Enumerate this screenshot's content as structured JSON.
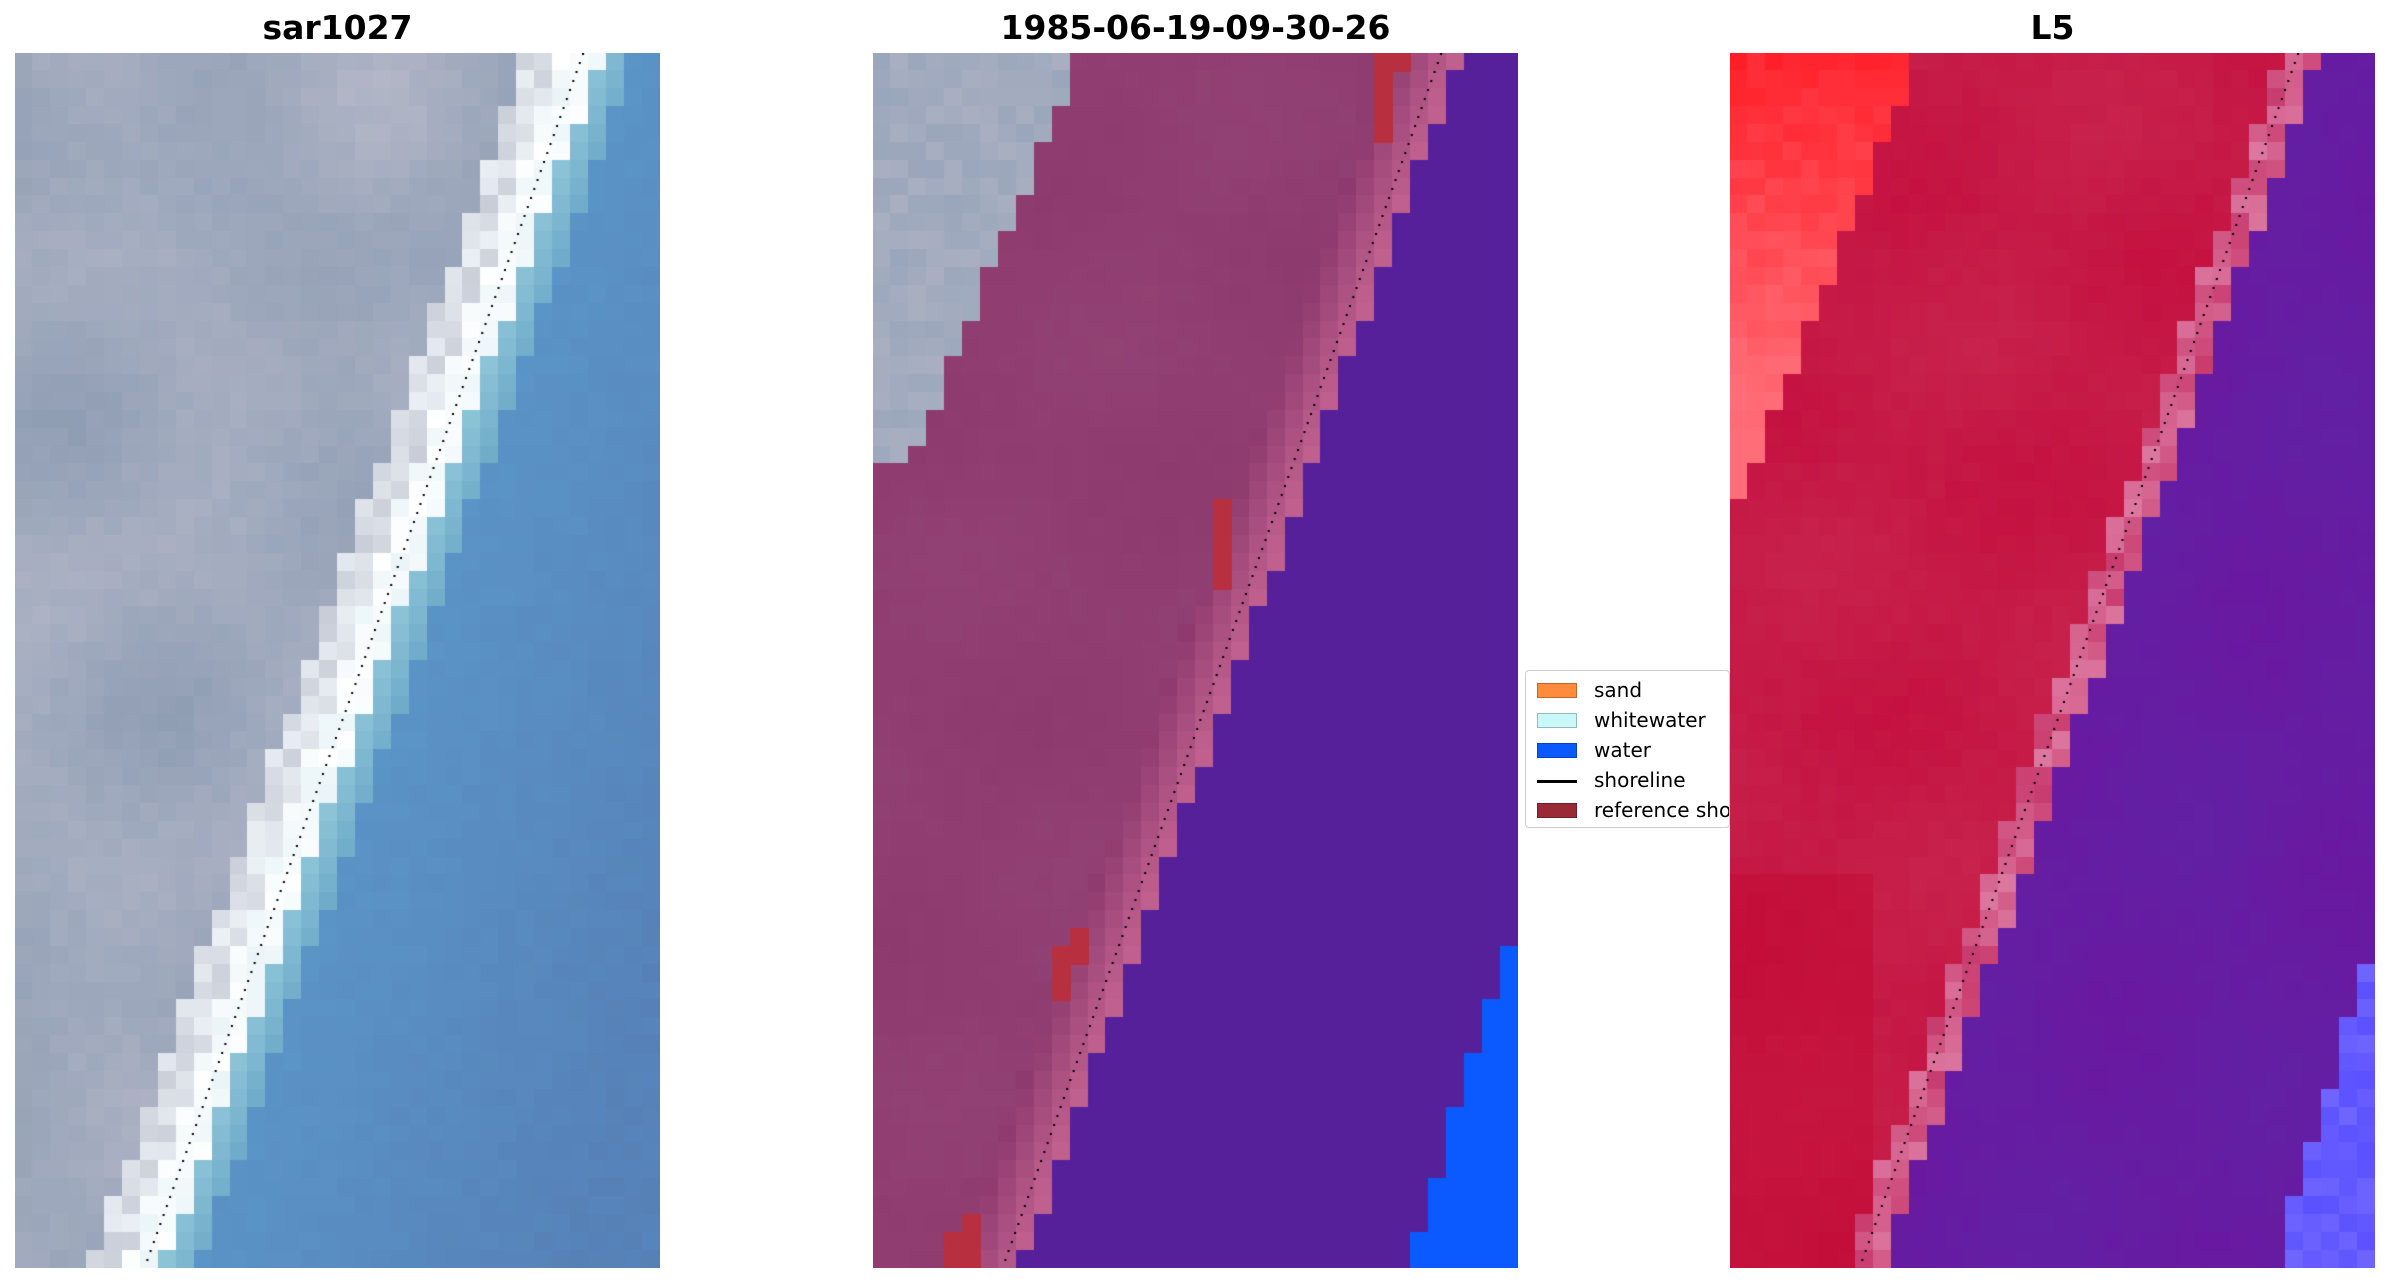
{
  "panels": [
    {
      "title": "sar1027"
    },
    {
      "title": "1985-06-19-09-30-26"
    },
    {
      "title": "L5"
    }
  ],
  "legend": {
    "items": [
      {
        "label": "sand",
        "color": "#ff8c3c",
        "kind": "patch"
      },
      {
        "label": "whitewater",
        "color": "#c8f8f8",
        "kind": "patch"
      },
      {
        "label": "water",
        "color": "#0a5aff",
        "kind": "patch"
      },
      {
        "label": "shoreline",
        "color": "#000000",
        "kind": "line"
      },
      {
        "label": "reference shoreline",
        "color": "#9a2a35",
        "kind": "patch"
      }
    ]
  },
  "colors": {
    "sand_overlay": "#8d3a6e",
    "sand_edge": "#c0608f",
    "water_class": "#56209a",
    "water_deep": "#0a5aff",
    "reference_cells": "#b8303f",
    "land_grey": "#9aa6bb",
    "sea_blue": "#5b95c8",
    "index_high": "#c41040",
    "index_low": "#6a18a0"
  }
}
